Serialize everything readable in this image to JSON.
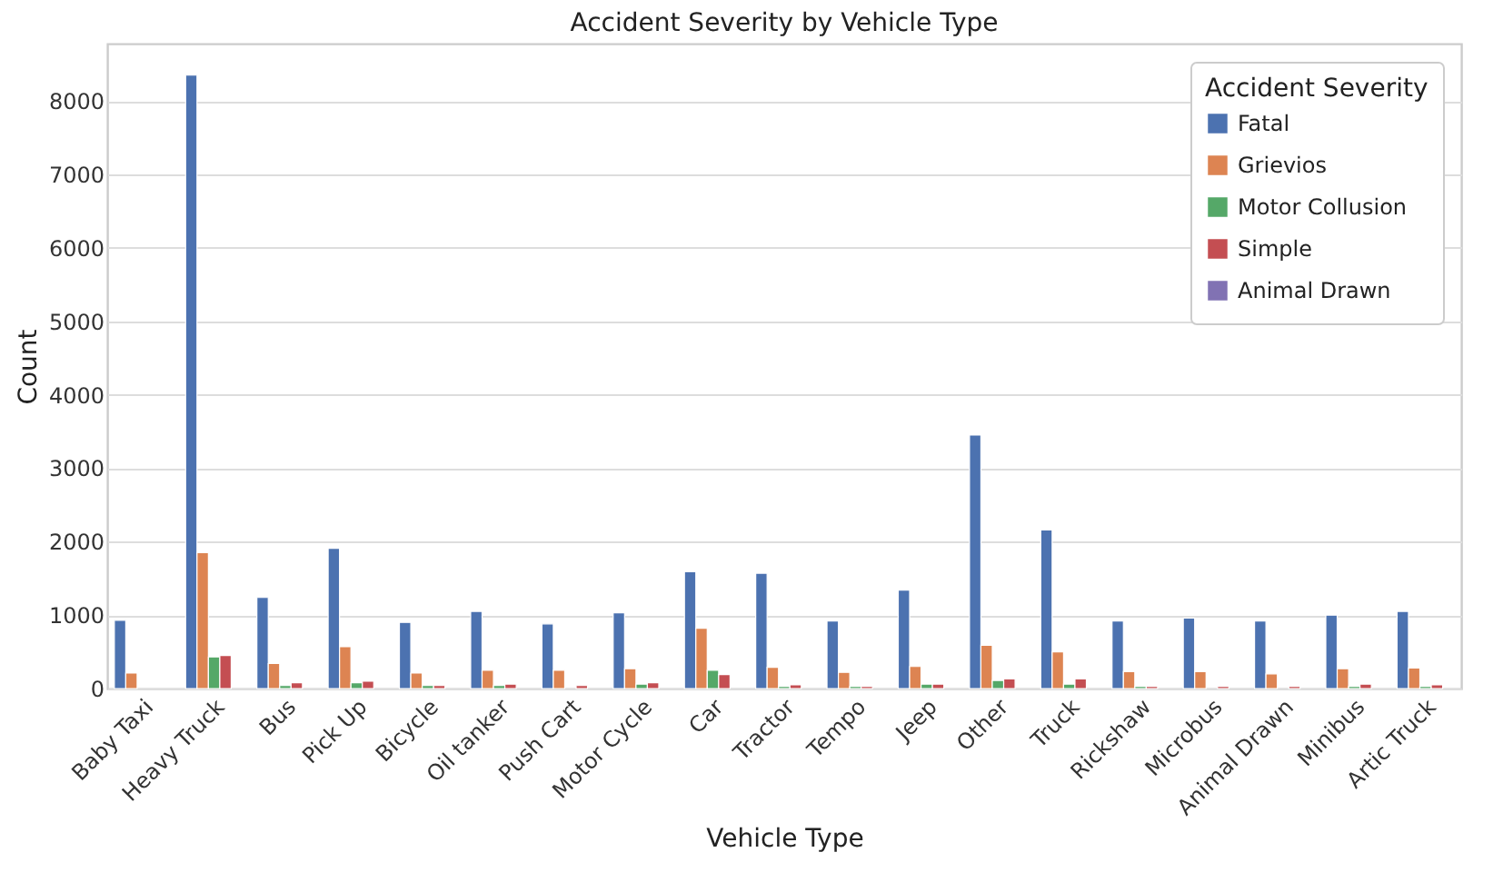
{
  "chart_data": {
    "type": "bar",
    "title": "Accident Severity by Vehicle Type",
    "xlabel": "Vehicle Type",
    "ylabel": "Count",
    "legend_title": "Accident Severity",
    "legend": "top right",
    "grid": "y",
    "categories": [
      "Baby Taxi",
      "Heavy Truck",
      "Bus",
      "Pick Up",
      "Bicycle",
      "Oil tanker",
      "Push Cart",
      "Motor Cycle",
      "Car",
      "Tractor",
      "Tempo",
      "Jeep",
      "Other",
      "Truck",
      "Rickshaw",
      "Microbus",
      "Animal Drawn",
      "Minibus",
      "Artic Truck"
    ],
    "ylim": [
      0,
      8780
    ],
    "yticks": [
      0,
      1000,
      2000,
      3000,
      4000,
      5000,
      6000,
      7000,
      8000
    ],
    "series": [
      {
        "name": "Fatal",
        "color": "#4c72b0",
        "values": [
          930,
          8350,
          1240,
          1910,
          900,
          1050,
          880,
          1030,
          1590,
          1570,
          920,
          1340,
          3450,
          2160,
          920,
          960,
          920,
          1000,
          1050
        ]
      },
      {
        "name": "Grievios",
        "color": "#dd8452",
        "values": [
          210,
          1850,
          340,
          570,
          210,
          250,
          250,
          270,
          820,
          290,
          220,
          300,
          590,
          500,
          230,
          230,
          200,
          270,
          280
        ]
      },
      {
        "name": "Motor Collusion",
        "color": "#55a868",
        "values": [
          null,
          430,
          40,
          80,
          40,
          40,
          null,
          60,
          250,
          30,
          30,
          60,
          110,
          60,
          30,
          null,
          null,
          30,
          30
        ]
      },
      {
        "name": "Simple",
        "color": "#c44e52",
        "values": [
          null,
          450,
          80,
          100,
          40,
          60,
          40,
          80,
          190,
          50,
          30,
          60,
          130,
          130,
          30,
          30,
          30,
          60,
          50
        ]
      },
      {
        "name": "Animal Drawn",
        "color": "#8172b3",
        "values": [
          null,
          null,
          null,
          null,
          null,
          null,
          null,
          null,
          null,
          null,
          null,
          null,
          null,
          null,
          null,
          null,
          null,
          null,
          null
        ]
      }
    ]
  }
}
